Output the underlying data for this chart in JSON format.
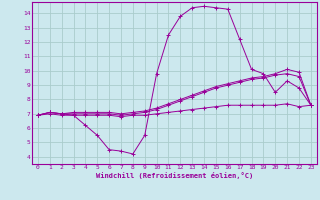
{
  "xlabel": "Windchill (Refroidissement éolien,°C)",
  "background_color": "#cce8ee",
  "grid_color": "#aacccc",
  "line_color": "#990099",
  "xlim": [
    -0.5,
    23.5
  ],
  "ylim": [
    3.5,
    14.8
  ],
  "yticks": [
    4,
    5,
    6,
    7,
    8,
    9,
    10,
    11,
    12,
    13,
    14
  ],
  "xticks": [
    0,
    1,
    2,
    3,
    4,
    5,
    6,
    7,
    8,
    9,
    10,
    11,
    12,
    13,
    14,
    15,
    16,
    17,
    18,
    19,
    20,
    21,
    22,
    23
  ],
  "series": [
    {
      "x": [
        0,
        1,
        2,
        3,
        4,
        5,
        6,
        7,
        8,
        9,
        10,
        11,
        12,
        13,
        14,
        15,
        16,
        17,
        18,
        19,
        20,
        21,
        22,
        23
      ],
      "y": [
        6.9,
        7.1,
        7.0,
        6.9,
        6.2,
        5.5,
        4.5,
        4.4,
        4.2,
        5.5,
        9.8,
        12.5,
        13.8,
        14.4,
        14.5,
        14.4,
        14.3,
        12.2,
        10.1,
        9.8,
        8.5,
        9.3,
        8.8,
        7.6
      ]
    },
    {
      "x": [
        0,
        1,
        2,
        3,
        4,
        5,
        6,
        7,
        8,
        9,
        10,
        11,
        12,
        13,
        14,
        15,
        16,
        17,
        18,
        19,
        20,
        21,
        22,
        23
      ],
      "y": [
        6.9,
        7.1,
        7.0,
        7.1,
        7.1,
        7.1,
        7.1,
        7.0,
        7.1,
        7.2,
        7.4,
        7.7,
        8.0,
        8.3,
        8.6,
        8.9,
        9.1,
        9.3,
        9.5,
        9.6,
        9.8,
        10.1,
        9.9,
        7.6
      ]
    },
    {
      "x": [
        0,
        1,
        2,
        3,
        4,
        5,
        6,
        7,
        8,
        9,
        10,
        11,
        12,
        13,
        14,
        15,
        16,
        17,
        18,
        19,
        20,
        21,
        22,
        23
      ],
      "y": [
        6.9,
        7.1,
        7.0,
        7.0,
        7.0,
        7.0,
        7.0,
        6.9,
        7.0,
        7.1,
        7.3,
        7.6,
        7.9,
        8.2,
        8.5,
        8.8,
        9.0,
        9.2,
        9.4,
        9.5,
        9.7,
        9.8,
        9.6,
        7.6
      ]
    },
    {
      "x": [
        0,
        1,
        2,
        3,
        4,
        5,
        6,
        7,
        8,
        9,
        10,
        11,
        12,
        13,
        14,
        15,
        16,
        17,
        18,
        19,
        20,
        21,
        22,
        23
      ],
      "y": [
        6.9,
        7.0,
        6.9,
        6.9,
        6.9,
        6.9,
        6.9,
        6.8,
        6.9,
        6.9,
        7.0,
        7.1,
        7.2,
        7.3,
        7.4,
        7.5,
        7.6,
        7.6,
        7.6,
        7.6,
        7.6,
        7.7,
        7.5,
        7.6
      ]
    }
  ]
}
